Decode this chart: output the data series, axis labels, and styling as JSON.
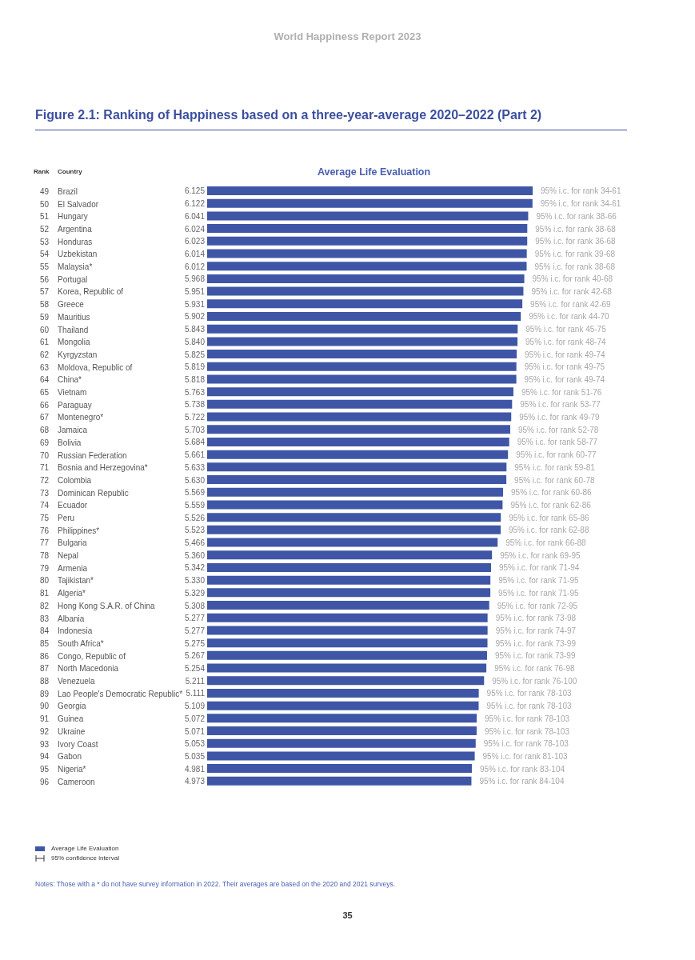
{
  "chart_data": {
    "type": "bar",
    "orientation": "horizontal",
    "title": "Figure 2.1: Ranking of Happiness based on a three-year-average 2020–2022 (Part 2)",
    "subtitle": "Average Life Evaluation",
    "ylabel": "Country",
    "categories": [
      "Brazil",
      "El Salvador",
      "Hungary",
      "Argentina",
      "Honduras",
      "Uzbekistan",
      "Malaysia*",
      "Portugal",
      "Korea, Republic of",
      "Greece",
      "Mauritius",
      "Thailand",
      "Mongolia",
      "Kyrgyzstan",
      "Moldova, Republic of",
      "China*",
      "Vietnam",
      "Paraguay",
      "Montenegro*",
      "Jamaica",
      "Bolivia",
      "Russian Federation",
      "Bosnia and Herzegovina*",
      "Colombia",
      "Dominican Republic",
      "Ecuador",
      "Peru",
      "Philippines*",
      "Bulgaria",
      "Nepal",
      "Armenia",
      "Tajikistan*",
      "Algeria*",
      "Hong Kong S.A.R. of China",
      "Albania",
      "Indonesia",
      "South Africa*",
      "Congo, Republic of",
      "North Macedonia",
      "Venezuela",
      "Lao People's Democratic Republic*",
      "Georgia",
      "Guinea",
      "Ukraine",
      "Ivory Coast",
      "Gabon",
      "Nigeria*",
      "Cameroon"
    ],
    "series": [
      {
        "name": "Average Life Evaluation",
        "color": "#3f56a6",
        "values": [
          6.125,
          6.122,
          6.041,
          6.024,
          6.023,
          6.014,
          6.012,
          5.968,
          5.951,
          5.931,
          5.902,
          5.843,
          5.84,
          5.825,
          5.819,
          5.818,
          5.763,
          5.738,
          5.722,
          5.703,
          5.684,
          5.661,
          5.633,
          5.63,
          5.569,
          5.559,
          5.526,
          5.523,
          5.466,
          5.36,
          5.342,
          5.33,
          5.329,
          5.308,
          5.277,
          5.277,
          5.275,
          5.267,
          5.254,
          5.211,
          5.111,
          5.109,
          5.072,
          5.071,
          5.053,
          5.035,
          4.981,
          4.973
        ],
        "value_labels": [
          "6.125",
          "6.122",
          "6.041",
          "6.024",
          "6.023",
          "6.014",
          "6.012",
          "5.968",
          "5.951",
          "5.931",
          "5.902",
          "5.843",
          "5.840",
          "5.825",
          "5.819",
          "5.818",
          "5.763",
          "5.738",
          "5.722",
          "5.703",
          "5.684",
          "5.661",
          "5.633",
          "5.630",
          "5.569",
          "5.559",
          "5.526",
          "5.523",
          "5.466",
          "5.360",
          "5.342",
          "5.330",
          "5.329",
          "5.308",
          "5.277",
          "5.277",
          "5.275",
          "5.267",
          "5.254",
          "5.211",
          "5.111",
          "5.109",
          "5.072",
          "5.071",
          "5.053",
          "5.035",
          "4.981",
          "4.973"
        ]
      }
    ],
    "legend": "bottom left",
    "annotations": [
      "World Happiness Report 2023",
      "Rank",
      "95% confidence interval",
      "Notes: Those with a * do not have survey information in 2022. Their averages are based on the 2020 and 2021 surveys.",
      "35",
      "49",
      "50",
      "51",
      "52",
      "53",
      "54",
      "55",
      "56",
      "57",
      "58",
      "59",
      "60",
      "61",
      "62",
      "63",
      "64",
      "65",
      "66",
      "67",
      "68",
      "69",
      "70",
      "71",
      "72",
      "73",
      "74",
      "75",
      "76",
      "77",
      "78",
      "79",
      "80",
      "81",
      "82",
      "83",
      "84",
      "85",
      "86",
      "87",
      "88",
      "89",
      "90",
      "91",
      "92",
      "93",
      "94",
      "95",
      "96",
      "95% i.c. for rank 34-61",
      "95% i.c. for rank 34-61",
      "95% i.c. for rank 38-66",
      "95% i.c. for rank 38-68",
      "95% i.c. for rank 36-68",
      "95% i.c. for rank 39-68",
      "95% i.c. for rank 38-68",
      "95% i.c. for rank 40-68",
      "95% i.c. for rank 42-68",
      "95% i.c. for rank 42-69",
      "95% i.c. for rank 44-70",
      "95% i.c. for rank 45-75",
      "95% i.c. for rank 48-74",
      "95% i.c. for rank 49-74",
      "95% i.c. for rank 49-75",
      "95% i.c. for rank 49-74",
      "95% i.c. for rank 51-76",
      "95% i.c. for rank 53-77",
      "95% i.c. for rank 49-79",
      "95% i.c. for rank 52-78",
      "95% i.c. for rank 58-77",
      "95% i.c. for rank 60-77",
      "95% i.c. for rank 59-81",
      "95% i.c. for rank 60-78",
      "95% i.c. for rank 60-86",
      "95% i.c. for rank 62-86",
      "95% i.c. for rank 65-86",
      "95% i.c. for rank 62-88",
      "95% i.c. for rank 66-88",
      "95% i.c. for rank 69-95",
      "95% i.c. for rank 71-94",
      "95% i.c. for rank 71-95",
      "95% i.c. for rank 71-95",
      "95% i.c. for rank 72-95",
      "95% i.c. for rank 73-98",
      "95% i.c. for rank 74-97",
      "95% i.c. for rank 73-99",
      "95% i.c. for rank 73-99",
      "95% i.c. for rank 76-98",
      "95% i.c. for rank 76-100",
      "95% i.c. for rank 78-103",
      "95% i.c. for rank 78-103",
      "95% i.c. for rank 78-103",
      "95% i.c. for rank 78-103",
      "95% i.c. for rank 78-103",
      "95% i.c. for rank 81-103",
      "95% i.c. for rank 83-104",
      "95% i.c. for rank 84-104"
    ]
  }
}
